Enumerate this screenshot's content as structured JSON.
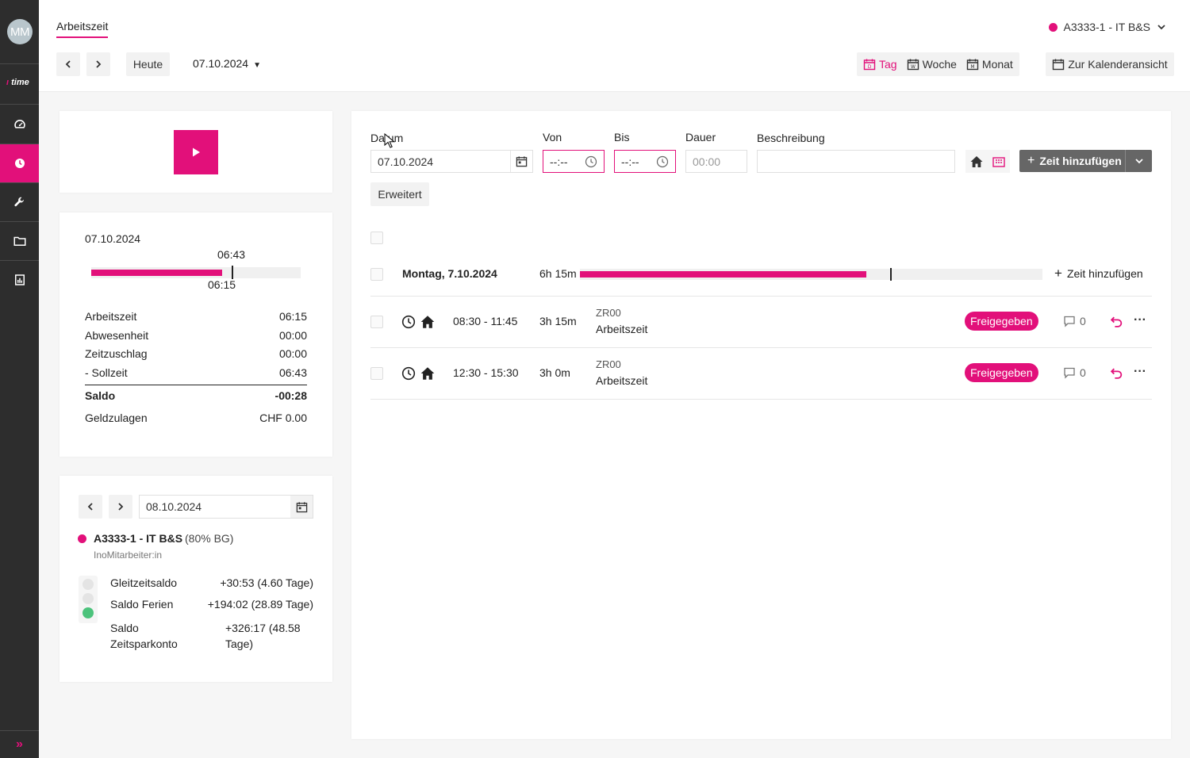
{
  "sidebar": {
    "avatar_initials": "MM",
    "logo_text": "time",
    "nav_icons": [
      "dashboard-icon",
      "clock-icon",
      "wrench-icon",
      "folder-icon",
      "report-icon"
    ],
    "expand_label": "»"
  },
  "header": {
    "tab_title": "Arbeitszeit",
    "today_label": "Heute",
    "selected_date": "07.10.2024",
    "org_label": "A3333-1 - IT B&S",
    "view_tag": "Tag",
    "view_week": "Woche",
    "view_month": "Monat",
    "calendar_view_label": "Zur Kalenderansicht"
  },
  "summary": {
    "date": "07.10.2024",
    "target_marker": "06:43",
    "actual_marker": "06:15",
    "progress_fraction": 0.626,
    "target_fraction": 0.67,
    "rows": [
      {
        "label": "Arbeitszeit",
        "value": "06:15"
      },
      {
        "label": "Abwesenheit",
        "value": "00:00"
      },
      {
        "label": "Zeitzuschlag",
        "value": "00:00"
      },
      {
        "label": "- Sollzeit",
        "value": "06:43"
      }
    ],
    "saldo_label": "Saldo",
    "saldo_value": "-00:28",
    "geld_label": "Geldzulagen",
    "geld_value": "CHF 0.00"
  },
  "balances": {
    "date": "08.10.2024",
    "org_name": "A3333-1 - IT B&S",
    "org_extra": "(80% BG)",
    "role": "InoMitarbeiter:in",
    "items": [
      {
        "label": "Gleitzeitsaldo",
        "value": "+30:53 (4.60 Tage)"
      },
      {
        "label": "Saldo Ferien",
        "value": "+194:02 (28.89 Tage)"
      },
      {
        "label": "Saldo Zeitsparkonto",
        "value": "+326:17 (48.58 Tage)"
      }
    ]
  },
  "form": {
    "datum_label": "Datum",
    "datum_value": "07.10.2024",
    "von_label": "Von",
    "von_value": "--:--",
    "bis_label": "Bis",
    "bis_value": "--:--",
    "dauer_label": "Dauer",
    "dauer_value": "00:00",
    "beschreibung_label": "Beschreibung",
    "beschreibung_value": "",
    "add_button": "Zeit hinzufügen",
    "erweitert_label": "Erweitert"
  },
  "day": {
    "title": "Montag, 7.10.2024",
    "total": "6h 15m",
    "progress_fraction": 0.62,
    "target_fraction": 0.67,
    "add_label": "Zeit hinzufügen"
  },
  "entries": [
    {
      "time": "08:30 - 11:45",
      "duration": "3h 15m",
      "code": "ZR00",
      "type": "Arbeitszeit",
      "status": "Freigegeben",
      "comments": "0"
    },
    {
      "time": "12:30 - 15:30",
      "duration": "3h 0m",
      "code": "ZR00",
      "type": "Arbeitszeit",
      "status": "Freigegeben",
      "comments": "0"
    }
  ],
  "colors": {
    "accent": "#e2107a",
    "sidebar": "#2d2d2d",
    "green": "#4cc37c"
  }
}
